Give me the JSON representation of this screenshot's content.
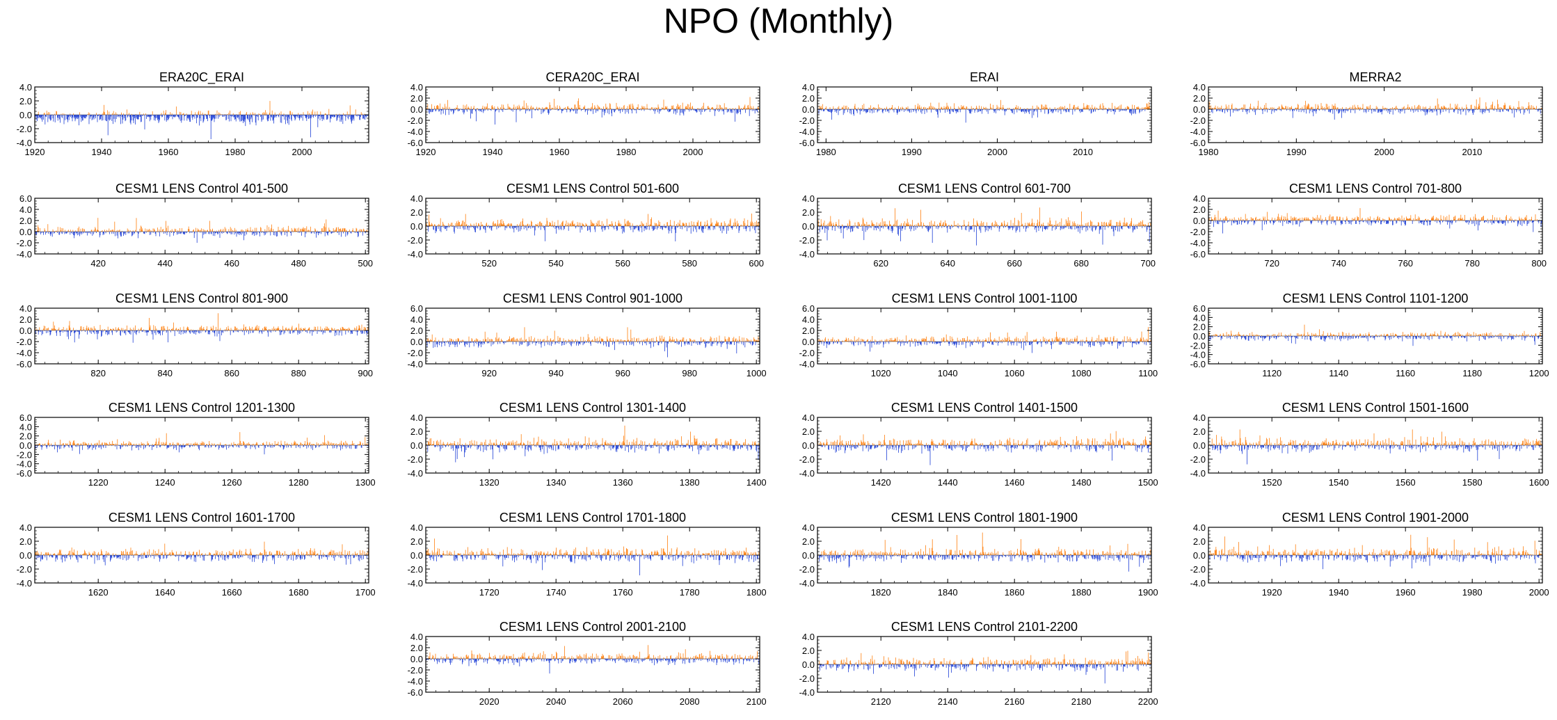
{
  "page": {
    "title": "NPO (Monthly)"
  },
  "style": {
    "positive_color": "#ff7f0e",
    "negative_color": "#1f3fd6",
    "axis_color": "#000000"
  },
  "chart_data": [
    {
      "type": "bar",
      "title": "ERA20C_ERAI",
      "xlim": [
        1920,
        2020
      ],
      "ylim": [
        -4,
        4
      ],
      "yticks": [
        "4.0",
        "2.0",
        "0.0",
        "-2.0",
        "-4.0"
      ],
      "xticks": [
        "1920",
        "1940",
        "1960",
        "1980",
        "2000"
      ],
      "series_bias": -0.3
    },
    {
      "type": "bar",
      "title": "CERA20C_ERAI",
      "xlim": [
        1920,
        2020
      ],
      "ylim": [
        -6,
        4
      ],
      "yticks": [
        "4.0",
        "2.0",
        "0.0",
        "-2.0",
        "-4.0",
        "-6.0"
      ],
      "xticks": [
        "1920",
        "1940",
        "1960",
        "1980",
        "2000"
      ],
      "series_bias": 0
    },
    {
      "type": "bar",
      "title": "ERAI",
      "xlim": [
        1979,
        2018
      ],
      "ylim": [
        -6,
        4
      ],
      "yticks": [
        "4.0",
        "2.0",
        "0.0",
        "-2.0",
        "-4.0",
        "-6.0"
      ],
      "xticks": [
        "1980",
        "1990",
        "2000",
        "2010"
      ],
      "series_bias": 0
    },
    {
      "type": "bar",
      "title": "MERRA2",
      "xlim": [
        1980,
        2018
      ],
      "ylim": [
        -6,
        4
      ],
      "yticks": [
        "4.0",
        "2.0",
        "0.0",
        "-2.0",
        "-4.0",
        "-6.0"
      ],
      "xticks": [
        "1980",
        "1990",
        "2000",
        "2010"
      ],
      "series_bias": 0
    },
    {
      "type": "bar",
      "title": "CESM1 LENS Control 401-500",
      "xlim": [
        401,
        501
      ],
      "ylim": [
        -4,
        6
      ],
      "yticks": [
        "6.0",
        "4.0",
        "2.0",
        "0.0",
        "-2.0",
        "-4.0"
      ],
      "xticks": [
        "420",
        "440",
        "460",
        "480",
        "500"
      ]
    },
    {
      "type": "bar",
      "title": "CESM1 LENS Control 501-600",
      "xlim": [
        501,
        601
      ],
      "ylim": [
        -4,
        4
      ],
      "yticks": [
        "4.0",
        "2.0",
        "0.0",
        "-2.0",
        "-4.0"
      ],
      "xticks": [
        "520",
        "540",
        "560",
        "580",
        "600"
      ]
    },
    {
      "type": "bar",
      "title": "CESM1 LENS Control 601-700",
      "xlim": [
        601,
        701
      ],
      "ylim": [
        -4,
        4
      ],
      "yticks": [
        "4.0",
        "2.0",
        "0.0",
        "-2.0",
        "-4.0"
      ],
      "xticks": [
        "620",
        "640",
        "660",
        "680",
        "700"
      ]
    },
    {
      "type": "bar",
      "title": "CESM1 LENS Control 701-800",
      "xlim": [
        701,
        801
      ],
      "ylim": [
        -6,
        4
      ],
      "yticks": [
        "4.0",
        "2.0",
        "0.0",
        "-2.0",
        "-4.0",
        "-6.0"
      ],
      "xticks": [
        "720",
        "740",
        "760",
        "780",
        "800"
      ]
    },
    {
      "type": "bar",
      "title": "CESM1 LENS Control 801-900",
      "xlim": [
        801,
        901
      ],
      "ylim": [
        -6,
        4
      ],
      "yticks": [
        "4.0",
        "2.0",
        "0.0",
        "-2.0",
        "-4.0",
        "-6.0"
      ],
      "xticks": [
        "820",
        "840",
        "860",
        "880",
        "900"
      ]
    },
    {
      "type": "bar",
      "title": "CESM1 LENS Control 901-1000",
      "xlim": [
        901,
        1001
      ],
      "ylim": [
        -4,
        6
      ],
      "yticks": [
        "6.0",
        "4.0",
        "2.0",
        "0.0",
        "-2.0",
        "-4.0"
      ],
      "xticks": [
        "920",
        "940",
        "960",
        "980",
        "1000"
      ]
    },
    {
      "type": "bar",
      "title": "CESM1 LENS Control 1001-1100",
      "xlim": [
        1001,
        1101
      ],
      "ylim": [
        -4,
        6
      ],
      "yticks": [
        "6.0",
        "4.0",
        "2.0",
        "0.0",
        "-2.0",
        "-4.0"
      ],
      "xticks": [
        "1020",
        "1040",
        "1060",
        "1080",
        "1100"
      ]
    },
    {
      "type": "bar",
      "title": "CESM1 LENS Control 1101-1200",
      "xlim": [
        1101,
        1201
      ],
      "ylim": [
        -6,
        6
      ],
      "yticks": [
        "6.0",
        "4.0",
        "2.0",
        "0.0",
        "-2.0",
        "-4.0",
        "-6.0"
      ],
      "xticks": [
        "1120",
        "1140",
        "1160",
        "1180",
        "1200"
      ]
    },
    {
      "type": "bar",
      "title": "CESM1 LENS Control 1201-1300",
      "xlim": [
        1201,
        1301
      ],
      "ylim": [
        -6,
        6
      ],
      "yticks": [
        "6.0",
        "4.0",
        "2.0",
        "0.0",
        "-2.0",
        "-4.0",
        "-6.0"
      ],
      "xticks": [
        "1220",
        "1240",
        "1260",
        "1280",
        "1300"
      ]
    },
    {
      "type": "bar",
      "title": "CESM1 LENS Control 1301-1400",
      "xlim": [
        1301,
        1401
      ],
      "ylim": [
        -4,
        4
      ],
      "yticks": [
        "4.0",
        "2.0",
        "0.0",
        "-2.0",
        "-4.0"
      ],
      "xticks": [
        "1320",
        "1340",
        "1360",
        "1380",
        "1400"
      ]
    },
    {
      "type": "bar",
      "title": "CESM1 LENS Control 1401-1500",
      "xlim": [
        1401,
        1501
      ],
      "ylim": [
        -4,
        4
      ],
      "yticks": [
        "4.0",
        "2.0",
        "0.0",
        "-2.0",
        "-4.0"
      ],
      "xticks": [
        "1420",
        "1440",
        "1460",
        "1480",
        "1500"
      ]
    },
    {
      "type": "bar",
      "title": "CESM1 LENS Control 1501-1600",
      "xlim": [
        1501,
        1601
      ],
      "ylim": [
        -4,
        4
      ],
      "yticks": [
        "4.0",
        "2.0",
        "0.0",
        "-2.0",
        "-4.0"
      ],
      "xticks": [
        "1520",
        "1540",
        "1560",
        "1580",
        "1600"
      ]
    },
    {
      "type": "bar",
      "title": "CESM1 LENS Control 1601-1700",
      "xlim": [
        1601,
        1701
      ],
      "ylim": [
        -4,
        4
      ],
      "yticks": [
        "4.0",
        "2.0",
        "0.0",
        "-2.0",
        "-4.0"
      ],
      "xticks": [
        "1620",
        "1640",
        "1660",
        "1680",
        "1700"
      ]
    },
    {
      "type": "bar",
      "title": "CESM1 LENS Control 1701-1800",
      "xlim": [
        1701,
        1801
      ],
      "ylim": [
        -4,
        4
      ],
      "yticks": [
        "4.0",
        "2.0",
        "0.0",
        "-2.0",
        "-4.0"
      ],
      "xticks": [
        "1720",
        "1740",
        "1760",
        "1780",
        "1800"
      ]
    },
    {
      "type": "bar",
      "title": "CESM1 LENS Control 1801-1900",
      "xlim": [
        1801,
        1901
      ],
      "ylim": [
        -4,
        4
      ],
      "yticks": [
        "4.0",
        "2.0",
        "0.0",
        "-2.0",
        "-4.0"
      ],
      "xticks": [
        "1820",
        "1840",
        "1860",
        "1880",
        "1900"
      ]
    },
    {
      "type": "bar",
      "title": "CESM1 LENS Control 1901-2000",
      "xlim": [
        1901,
        2001
      ],
      "ylim": [
        -4,
        4
      ],
      "yticks": [
        "4.0",
        "2.0",
        "0.0",
        "-2.0",
        "-4.0"
      ],
      "xticks": [
        "1920",
        "1940",
        "1960",
        "1980",
        "2000"
      ]
    },
    {
      "type": "bar",
      "title": "CESM1 LENS Control 2001-2100",
      "xlim": [
        2001,
        2101
      ],
      "ylim": [
        -6,
        4
      ],
      "yticks": [
        "4.0",
        "2.0",
        "0.0",
        "-2.0",
        "-4.0",
        "-6.0"
      ],
      "xticks": [
        "2020",
        "2040",
        "2060",
        "2080",
        "2100"
      ]
    },
    {
      "type": "bar",
      "title": "CESM1 LENS Control 2101-2200",
      "xlim": [
        2101,
        2201
      ],
      "ylim": [
        -4,
        4
      ],
      "yticks": [
        "4.0",
        "2.0",
        "0.0",
        "-2.0",
        "-4.0"
      ],
      "xticks": [
        "2120",
        "2140",
        "2160",
        "2180",
        "2200"
      ]
    }
  ]
}
